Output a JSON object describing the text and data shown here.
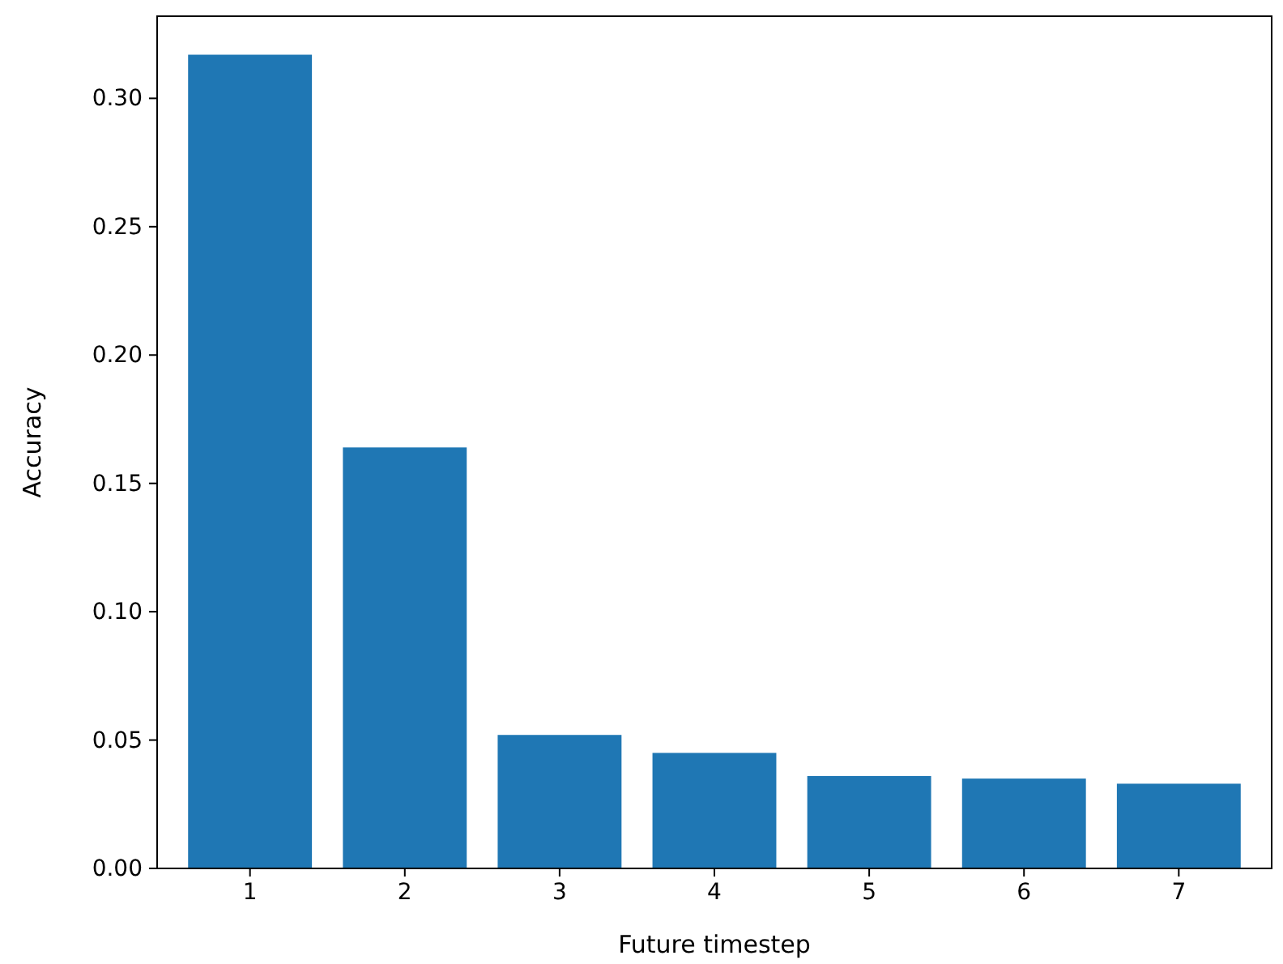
{
  "chart_data": {
    "type": "bar",
    "xlabel": "Future timestep",
    "ylabel": "Accuracy",
    "categories": [
      "1",
      "2",
      "3",
      "4",
      "5",
      "6",
      "7"
    ],
    "values": [
      0.317,
      0.164,
      0.052,
      0.045,
      0.036,
      0.035,
      0.033
    ],
    "color": "#1f77b4",
    "ylim": [
      0,
      0.332
    ],
    "yticks": [
      {
        "value": 0,
        "label": "0.00"
      },
      {
        "value": 0.05,
        "label": "0.05"
      },
      {
        "value": 0.1,
        "label": "0.10"
      },
      {
        "value": 0.15,
        "label": "0.15"
      },
      {
        "value": 0.2,
        "label": "0.20"
      },
      {
        "value": 0.25,
        "label": "0.25"
      },
      {
        "value": 0.3,
        "label": "0.30"
      }
    ],
    "grid": false
  }
}
